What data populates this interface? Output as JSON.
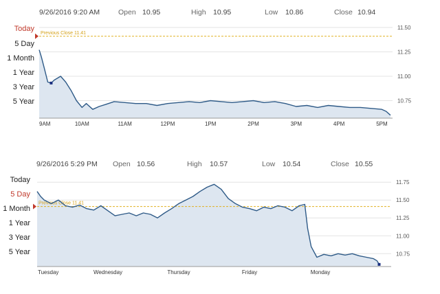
{
  "charts": [
    {
      "header": {
        "datetime": "9/26/2016 9:20 AM",
        "open_label": "Open",
        "open": "10.95",
        "high_label": "High",
        "high": "10.95",
        "low_label": "Low",
        "low": "10.86",
        "close_label": "Close",
        "close": "10.94"
      },
      "ranges": [
        "Today",
        "5 Day",
        "1 Month",
        "1 Year",
        "3 Year",
        "5 Year"
      ],
      "active_range": "Today",
      "prev_close_label": "Previous Close 11.41"
    },
    {
      "header": {
        "datetime": "9/26/2016 5:29 PM",
        "open_label": "Open",
        "open": "10.56",
        "high_label": "High",
        "high": "10.57",
        "low_label": "Low",
        "low": "10.54",
        "close_label": "Close",
        "close": "10.55"
      },
      "ranges": [
        "Today",
        "5 Day",
        "1 Month",
        "1 Year",
        "3 Year",
        "5 Year"
      ],
      "active_range": "5 Day",
      "prev_close_label": "Previous Close 11.41"
    }
  ],
  "colors": {
    "line": "#2e5a87",
    "fill": "#dde6f0",
    "prev_close": "#e0b020",
    "active": "#c0392b",
    "grid": "#e3e3e3"
  },
  "chart_data": [
    {
      "type": "area",
      "x_labels": [
        "9AM",
        "10AM",
        "11AM",
        "12PM",
        "1PM",
        "2PM",
        "3PM",
        "4PM",
        "5PM"
      ],
      "x_range": [
        9.0,
        17.25
      ],
      "ylim": [
        10.57,
        11.5
      ],
      "y_ticks": [
        11.5,
        11.25,
        11.0,
        10.75
      ],
      "y_tick_labels": [
        "11.50",
        "11.25",
        "11.00",
        "10.75"
      ],
      "previous_close": 11.41,
      "grid": true,
      "x": [
        9.0,
        9.05,
        9.12,
        9.2,
        9.28,
        9.35,
        9.5,
        9.62,
        9.75,
        9.87,
        10.0,
        10.1,
        10.25,
        10.4,
        10.55,
        10.75,
        11.0,
        11.25,
        11.5,
        11.75,
        12.0,
        12.25,
        12.5,
        12.75,
        13.0,
        13.25,
        13.5,
        13.75,
        14.0,
        14.25,
        14.5,
        14.75,
        15.0,
        15.25,
        15.5,
        15.75,
        16.0,
        16.25,
        16.5,
        16.75,
        17.0,
        17.1,
        17.2
      ],
      "values": [
        11.27,
        11.2,
        11.08,
        10.94,
        10.93,
        10.96,
        11.0,
        10.94,
        10.85,
        10.75,
        10.68,
        10.72,
        10.66,
        10.69,
        10.71,
        10.74,
        10.73,
        10.72,
        10.72,
        10.7,
        10.72,
        10.73,
        10.74,
        10.73,
        10.75,
        10.74,
        10.73,
        10.74,
        10.75,
        10.73,
        10.74,
        10.72,
        10.69,
        10.7,
        10.68,
        10.7,
        10.69,
        10.68,
        10.68,
        10.67,
        10.66,
        10.64,
        10.6
      ],
      "marker_point": {
        "x": 9.28,
        "y": 10.93
      }
    },
    {
      "type": "area",
      "x_labels": [
        "Tuesday",
        "Wednesday",
        "Thursday",
        "Friday",
        "Monday"
      ],
      "x_range": [
        0.0,
        5.0
      ],
      "ylim": [
        10.57,
        11.8
      ],
      "y_ticks": [
        11.75,
        11.5,
        11.25,
        11.0,
        10.75
      ],
      "y_tick_labels": [
        "11.75",
        "11.50",
        "11.25",
        "11.00",
        "10.75"
      ],
      "previous_close": 11.41,
      "grid": true,
      "x": [
        0.0,
        0.05,
        0.1,
        0.2,
        0.3,
        0.4,
        0.5,
        0.6,
        0.7,
        0.8,
        0.9,
        1.0,
        1.1,
        1.2,
        1.3,
        1.4,
        1.5,
        1.6,
        1.7,
        1.8,
        1.9,
        2.0,
        2.1,
        2.2,
        2.3,
        2.4,
        2.5,
        2.6,
        2.7,
        2.8,
        2.9,
        3.0,
        3.1,
        3.2,
        3.3,
        3.4,
        3.5,
        3.6,
        3.7,
        3.78,
        3.82,
        3.87,
        3.95,
        4.05,
        4.15,
        4.25,
        4.35,
        4.45,
        4.55,
        4.65,
        4.75,
        4.8,
        4.83
      ],
      "values": [
        11.62,
        11.55,
        11.5,
        11.45,
        11.5,
        11.42,
        11.4,
        11.43,
        11.38,
        11.36,
        11.42,
        11.35,
        11.28,
        11.3,
        11.32,
        11.28,
        11.32,
        11.3,
        11.25,
        11.32,
        11.38,
        11.45,
        11.5,
        11.55,
        11.62,
        11.68,
        11.72,
        11.65,
        11.52,
        11.45,
        11.4,
        11.38,
        11.35,
        11.4,
        11.38,
        11.42,
        11.4,
        11.35,
        11.42,
        11.44,
        11.1,
        10.85,
        10.7,
        10.74,
        10.72,
        10.75,
        10.73,
        10.75,
        10.72,
        10.7,
        10.68,
        10.65,
        10.6
      ],
      "marker_point": {
        "x": 4.83,
        "y": 10.6
      }
    }
  ]
}
